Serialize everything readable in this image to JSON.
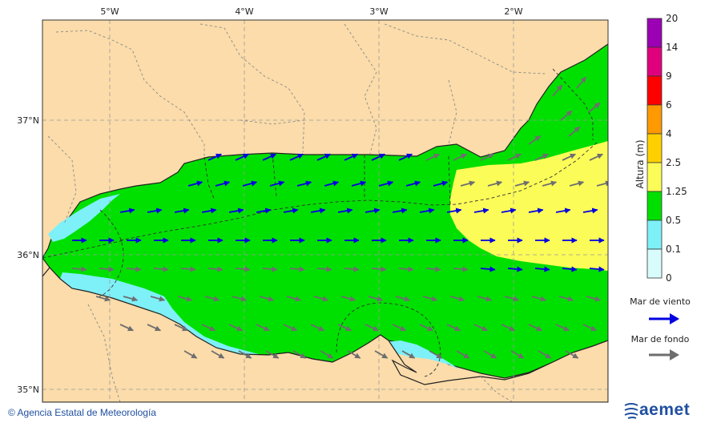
{
  "map": {
    "lon_ticks": [
      "5°W",
      "4°W",
      "3°W",
      "2°W"
    ],
    "lat_ticks": [
      "37°N",
      "36°N",
      "35°N"
    ],
    "colors": {
      "land": "#fbdcaa",
      "sea_0_1": "#d8fcfc",
      "sea_0_5": "#7ef0f8",
      "sea_1_25": "#00e000",
      "sea_2_5": "#fcfc58",
      "wind_arrow": "#0000e0",
      "swell_arrow": "#6e6e6e"
    }
  },
  "legend": {
    "title": "Altura (m)",
    "levels": [
      "20",
      "14",
      "9",
      "6",
      "4",
      "2.5",
      "1.25",
      "0.5",
      "0.1",
      "0"
    ],
    "colors": [
      "#9b00b4",
      "#e0007d",
      "#ff0000",
      "#ff9900",
      "#ffd000",
      "#fcfc58",
      "#00e000",
      "#7ef0f8",
      "#d8fcfc"
    ],
    "wind_label": "Mar de viento",
    "swell_label": "Mar de fondo"
  },
  "footer": {
    "credit": "Agencia Estatal de Meteorología",
    "logo_text": "aemet"
  }
}
